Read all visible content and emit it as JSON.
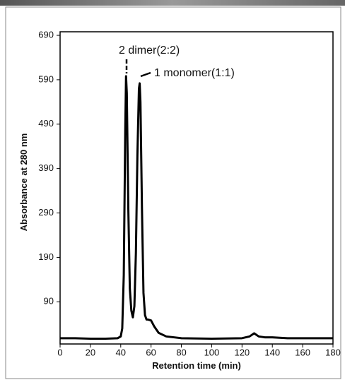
{
  "chart_data": {
    "type": "line",
    "xlabel": "Retention time (min)",
    "ylabel": "Absorbance at 280 nm",
    "annotations": [
      "2 dimer(2:2)",
      "1 monomer(1:1)"
    ],
    "xlim": [
      0,
      180
    ],
    "xticks": [
      0,
      20,
      40,
      60,
      80,
      100,
      120,
      140,
      160,
      180
    ],
    "ylim": [
      -5,
      698
    ],
    "yticks": [
      90,
      190,
      290,
      390,
      490,
      590,
      690
    ],
    "color": "#000000",
    "x": [
      0,
      10,
      20,
      30,
      38,
      40,
      41,
      42,
      43,
      43.5,
      44,
      45,
      46,
      47,
      48,
      49,
      50,
      51,
      52,
      52.5,
      53,
      54,
      55,
      56,
      57,
      58,
      60,
      62,
      65,
      70,
      75,
      80,
      100,
      120,
      125,
      128,
      131,
      135,
      140,
      145,
      150,
      160,
      170,
      180
    ],
    "y": [
      8,
      8,
      7,
      7,
      8,
      12,
      30,
      150,
      480,
      598,
      560,
      300,
      120,
      70,
      55,
      80,
      200,
      420,
      570,
      582,
      540,
      300,
      110,
      60,
      50,
      50,
      48,
      35,
      20,
      12,
      10,
      8,
      7,
      8,
      12,
      19,
      12,
      10,
      10,
      9,
      8,
      8,
      8,
      8
    ]
  }
}
